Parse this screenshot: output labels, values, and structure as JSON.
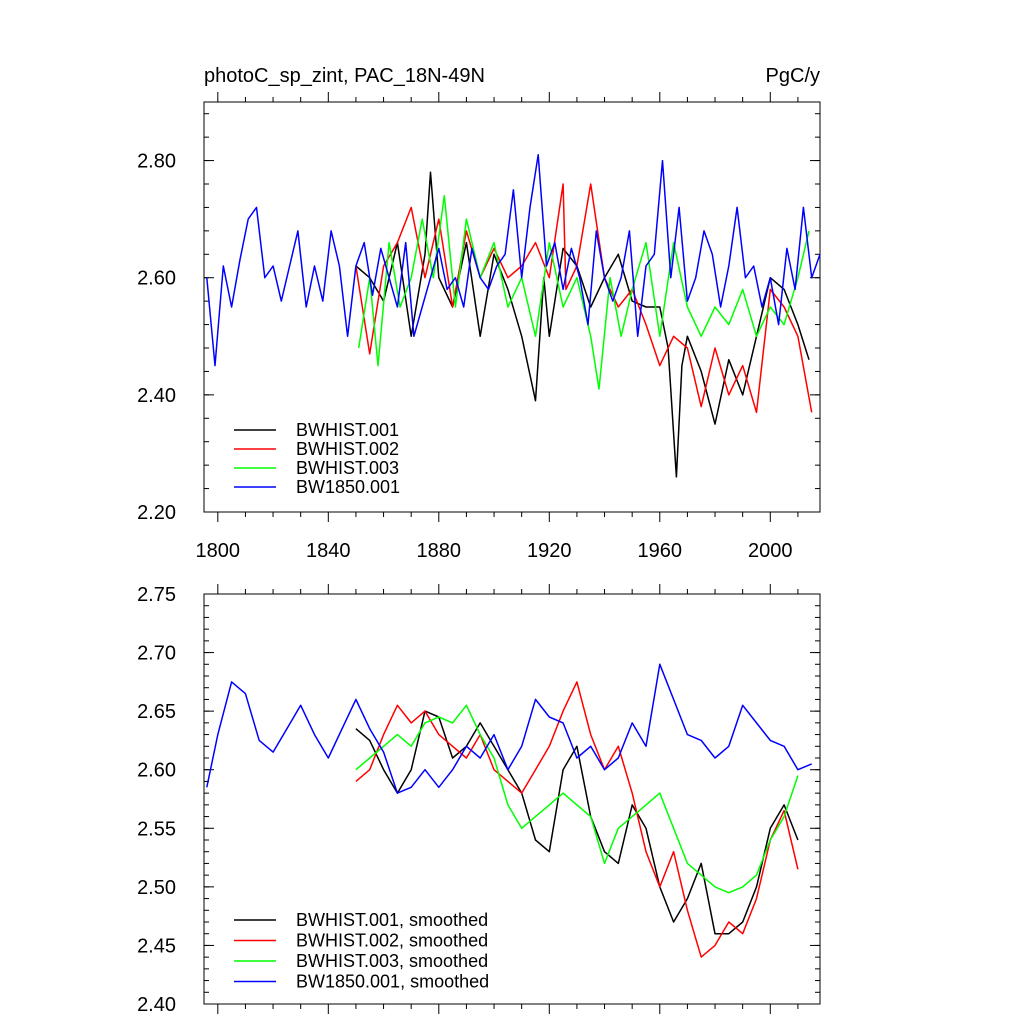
{
  "chart_data": [
    {
      "type": "line",
      "title_left": "photoC_sp_zint, PAC_18N-49N",
      "title_right": "PgC/y",
      "xlabel": "",
      "ylabel": "",
      "xlim": [
        1795,
        2018
      ],
      "ylim": [
        2.2,
        2.9
      ],
      "xticks": [
        1800,
        1840,
        1880,
        1920,
        1960,
        2000
      ],
      "yticks": [
        2.2,
        2.4,
        2.6,
        2.8
      ],
      "ytick_labels": [
        "2.20",
        "2.40",
        "2.60",
        "2.80"
      ],
      "show_xtick_labels": true,
      "legend_position": "bottom-left",
      "series": [
        {
          "name": "BWHIST.001",
          "color": "#000000",
          "x": [
            1850,
            1855,
            1860,
            1865,
            1870,
            1875,
            1877,
            1880,
            1885,
            1890,
            1895,
            1900,
            1905,
            1910,
            1915,
            1918,
            1920,
            1925,
            1930,
            1935,
            1940,
            1945,
            1950,
            1955,
            1960,
            1963,
            1966,
            1968,
            1970,
            1975,
            1980,
            1985,
            1990,
            1995,
            2000,
            2005,
            2010,
            2014
          ],
          "values": [
            2.62,
            2.6,
            2.56,
            2.66,
            2.5,
            2.64,
            2.78,
            2.6,
            2.55,
            2.66,
            2.5,
            2.64,
            2.58,
            2.5,
            2.39,
            2.6,
            2.5,
            2.65,
            2.62,
            2.55,
            2.6,
            2.64,
            2.56,
            2.55,
            2.55,
            2.48,
            2.26,
            2.45,
            2.5,
            2.44,
            2.35,
            2.46,
            2.4,
            2.5,
            2.6,
            2.58,
            2.52,
            2.46
          ]
        },
        {
          "name": "BWHIST.002",
          "color": "#ff0000",
          "x": [
            1850,
            1855,
            1860,
            1865,
            1870,
            1875,
            1880,
            1885,
            1890,
            1895,
            1900,
            1905,
            1910,
            1915,
            1920,
            1925,
            1926,
            1930,
            1935,
            1940,
            1945,
            1950,
            1955,
            1960,
            1965,
            1970,
            1975,
            1980,
            1985,
            1990,
            1995,
            2000,
            2005,
            2010,
            2015
          ],
          "values": [
            2.62,
            2.47,
            2.62,
            2.66,
            2.72,
            2.6,
            2.7,
            2.55,
            2.68,
            2.6,
            2.65,
            2.6,
            2.62,
            2.66,
            2.6,
            2.76,
            2.58,
            2.62,
            2.76,
            2.6,
            2.55,
            2.58,
            2.52,
            2.45,
            2.5,
            2.48,
            2.38,
            2.48,
            2.4,
            2.45,
            2.37,
            2.58,
            2.55,
            2.5,
            2.37
          ]
        },
        {
          "name": "BWHIST.003",
          "color": "#00ff00",
          "x": [
            1851,
            1855,
            1858,
            1862,
            1866,
            1870,
            1874,
            1878,
            1882,
            1886,
            1890,
            1895,
            1900,
            1905,
            1910,
            1915,
            1920,
            1925,
            1930,
            1935,
            1938,
            1942,
            1946,
            1950,
            1955,
            1960,
            1965,
            1970,
            1975,
            1980,
            1985,
            1990,
            1995,
            2000,
            2005,
            2010,
            2014
          ],
          "values": [
            2.48,
            2.6,
            2.45,
            2.66,
            2.55,
            2.6,
            2.7,
            2.6,
            2.74,
            2.55,
            2.7,
            2.6,
            2.66,
            2.55,
            2.6,
            2.5,
            2.66,
            2.55,
            2.6,
            2.5,
            2.41,
            2.6,
            2.5,
            2.58,
            2.66,
            2.5,
            2.66,
            2.55,
            2.5,
            2.55,
            2.52,
            2.58,
            2.5,
            2.55,
            2.52,
            2.6,
            2.68
          ]
        },
        {
          "name": "BW1850.001",
          "color": "#0000ff",
          "x": [
            1796,
            1799,
            1802,
            1805,
            1808,
            1811,
            1814,
            1817,
            1820,
            1823,
            1826,
            1829,
            1832,
            1835,
            1838,
            1841,
            1844,
            1847,
            1850,
            1853,
            1856,
            1859,
            1862,
            1865,
            1868,
            1871,
            1874,
            1877,
            1880,
            1883,
            1886,
            1889,
            1892,
            1895,
            1898,
            1901,
            1904,
            1907,
            1910,
            1913,
            1916,
            1919,
            1922,
            1925,
            1928,
            1931,
            1934,
            1937,
            1940,
            1943,
            1946,
            1949,
            1952,
            1955,
            1958,
            1961,
            1964,
            1967,
            1970,
            1973,
            1976,
            1979,
            1982,
            1985,
            1988,
            1991,
            1994,
            1997,
            2000,
            2003,
            2006,
            2009,
            2012,
            2015,
            2018
          ],
          "values": [
            2.6,
            2.45,
            2.62,
            2.55,
            2.63,
            2.7,
            2.72,
            2.6,
            2.62,
            2.56,
            2.62,
            2.68,
            2.55,
            2.62,
            2.56,
            2.68,
            2.62,
            2.5,
            2.62,
            2.66,
            2.57,
            2.65,
            2.6,
            2.55,
            2.66,
            2.5,
            2.55,
            2.6,
            2.65,
            2.58,
            2.6,
            2.55,
            2.65,
            2.6,
            2.58,
            2.62,
            2.64,
            2.75,
            2.6,
            2.72,
            2.81,
            2.62,
            2.66,
            2.58,
            2.65,
            2.6,
            2.52,
            2.68,
            2.6,
            2.56,
            2.6,
            2.68,
            2.5,
            2.62,
            2.64,
            2.8,
            2.6,
            2.72,
            2.56,
            2.6,
            2.68,
            2.64,
            2.55,
            2.62,
            2.72,
            2.6,
            2.62,
            2.55,
            2.6,
            2.52,
            2.65,
            2.58,
            2.72,
            2.6,
            2.64
          ]
        }
      ]
    },
    {
      "type": "line",
      "title_left": "",
      "title_right": "",
      "xlabel": "",
      "ylabel": "",
      "xlim": [
        1795,
        2018
      ],
      "ylim": [
        2.4,
        2.75
      ],
      "xticks": [
        1800,
        1840,
        1880,
        1920,
        1960,
        2000
      ],
      "yticks": [
        2.4,
        2.45,
        2.5,
        2.55,
        2.6,
        2.65,
        2.7,
        2.75
      ],
      "ytick_labels": [
        "2.40",
        "2.45",
        "2.50",
        "2.55",
        "2.60",
        "2.65",
        "2.70",
        "2.75"
      ],
      "show_xtick_labels": false,
      "legend_position": "bottom-left",
      "series": [
        {
          "name": "BWHIST.001, smoothed",
          "color": "#000000",
          "x": [
            1850,
            1855,
            1860,
            1865,
            1870,
            1875,
            1880,
            1885,
            1890,
            1895,
            1900,
            1905,
            1910,
            1915,
            1920,
            1925,
            1930,
            1935,
            1940,
            1945,
            1950,
            1955,
            1960,
            1965,
            1970,
            1975,
            1980,
            1985,
            1990,
            1995,
            2000,
            2005,
            2010
          ],
          "values": [
            2.635,
            2.625,
            2.6,
            2.58,
            2.6,
            2.65,
            2.645,
            2.61,
            2.62,
            2.64,
            2.62,
            2.6,
            2.58,
            2.54,
            2.53,
            2.6,
            2.62,
            2.56,
            2.53,
            2.52,
            2.57,
            2.55,
            2.5,
            2.47,
            2.49,
            2.52,
            2.46,
            2.46,
            2.47,
            2.5,
            2.55,
            2.57,
            2.54
          ]
        },
        {
          "name": "BWHIST.002, smoothed",
          "color": "#ff0000",
          "x": [
            1850,
            1855,
            1860,
            1865,
            1870,
            1875,
            1880,
            1885,
            1890,
            1895,
            1900,
            1905,
            1910,
            1915,
            1920,
            1925,
            1930,
            1935,
            1940,
            1945,
            1950,
            1955,
            1960,
            1965,
            1970,
            1975,
            1980,
            1985,
            1990,
            1995,
            2000,
            2005,
            2010
          ],
          "values": [
            2.59,
            2.6,
            2.63,
            2.655,
            2.64,
            2.65,
            2.63,
            2.62,
            2.61,
            2.63,
            2.6,
            2.59,
            2.58,
            2.6,
            2.62,
            2.65,
            2.675,
            2.63,
            2.6,
            2.62,
            2.58,
            2.53,
            2.5,
            2.53,
            2.48,
            2.44,
            2.45,
            2.47,
            2.46,
            2.49,
            2.54,
            2.565,
            2.515
          ]
        },
        {
          "name": "BWHIST.003, smoothed",
          "color": "#00ff00",
          "x": [
            1850,
            1855,
            1860,
            1865,
            1870,
            1875,
            1880,
            1885,
            1890,
            1895,
            1900,
            1905,
            1910,
            1915,
            1920,
            1925,
            1930,
            1935,
            1940,
            1945,
            1950,
            1955,
            1960,
            1965,
            1970,
            1975,
            1980,
            1985,
            1990,
            1995,
            2000,
            2005,
            2010
          ],
          "values": [
            2.6,
            2.61,
            2.62,
            2.63,
            2.62,
            2.64,
            2.645,
            2.64,
            2.655,
            2.63,
            2.61,
            2.57,
            2.55,
            2.56,
            2.57,
            2.58,
            2.57,
            2.56,
            2.52,
            2.55,
            2.56,
            2.57,
            2.58,
            2.55,
            2.52,
            2.51,
            2.5,
            2.495,
            2.5,
            2.51,
            2.54,
            2.56,
            2.595
          ]
        },
        {
          "name": "BW1850.001, smoothed",
          "color": "#0000ff",
          "x": [
            1796,
            1800,
            1805,
            1810,
            1815,
            1820,
            1825,
            1830,
            1835,
            1840,
            1845,
            1850,
            1855,
            1860,
            1865,
            1870,
            1875,
            1880,
            1885,
            1890,
            1895,
            1900,
            1905,
            1910,
            1915,
            1920,
            1925,
            1930,
            1935,
            1940,
            1945,
            1950,
            1955,
            1960,
            1965,
            1970,
            1975,
            1980,
            1985,
            1990,
            1995,
            2000,
            2005,
            2010,
            2015
          ],
          "values": [
            2.585,
            2.63,
            2.675,
            2.665,
            2.625,
            2.615,
            2.635,
            2.655,
            2.63,
            2.61,
            2.635,
            2.66,
            2.635,
            2.615,
            2.58,
            2.585,
            2.6,
            2.585,
            2.6,
            2.62,
            2.61,
            2.63,
            2.6,
            2.62,
            2.66,
            2.645,
            2.64,
            2.61,
            2.62,
            2.6,
            2.61,
            2.64,
            2.62,
            2.69,
            2.66,
            2.63,
            2.625,
            2.61,
            2.62,
            2.655,
            2.64,
            2.625,
            2.62,
            2.6,
            2.605
          ]
        }
      ]
    }
  ]
}
